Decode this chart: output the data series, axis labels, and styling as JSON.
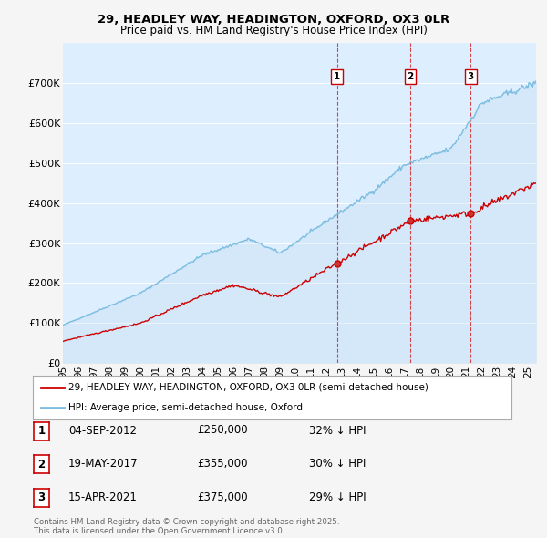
{
  "title_line1": "29, HEADLEY WAY, HEADINGTON, OXFORD, OX3 0LR",
  "title_line2": "Price paid vs. HM Land Registry's House Price Index (HPI)",
  "ylim": [
    0,
    800000
  ],
  "yticks": [
    0,
    100000,
    200000,
    300000,
    400000,
    500000,
    600000,
    700000
  ],
  "ytick_labels": [
    "£0",
    "£100K",
    "£200K",
    "£300K",
    "£400K",
    "£500K",
    "£600K",
    "£700K"
  ],
  "hpi_color": "#7bbde0",
  "hpi_fill_color": "#c5dff2",
  "price_color": "#cc0000",
  "vline_color": "#cc0000",
  "background_color": "#f5f5f5",
  "plot_bg_color": "#ddeeff",
  "grid_color": "#ffffff",
  "sales": [
    {
      "price": 250000,
      "label": "1",
      "x": 2012.67
    },
    {
      "price": 355000,
      "label": "2",
      "x": 2017.38
    },
    {
      "price": 375000,
      "label": "3",
      "x": 2021.29
    }
  ],
  "legend_entries": [
    {
      "label": "29, HEADLEY WAY, HEADINGTON, OXFORD, OX3 0LR (semi-detached house)",
      "color": "#cc0000"
    },
    {
      "label": "HPI: Average price, semi-detached house, Oxford",
      "color": "#7bbde0"
    }
  ],
  "table_rows": [
    {
      "num": "1",
      "date": "04-SEP-2012",
      "price": "£250,000",
      "hpi": "32% ↓ HPI"
    },
    {
      "num": "2",
      "date": "19-MAY-2017",
      "price": "£355,000",
      "hpi": "30% ↓ HPI"
    },
    {
      "num": "3",
      "date": "15-APR-2021",
      "price": "£375,000",
      "hpi": "29% ↓ HPI"
    }
  ],
  "footnote": "Contains HM Land Registry data © Crown copyright and database right 2025.\nThis data is licensed under the Open Government Licence v3.0.",
  "xstart": 1995,
  "xend": 2025.5
}
